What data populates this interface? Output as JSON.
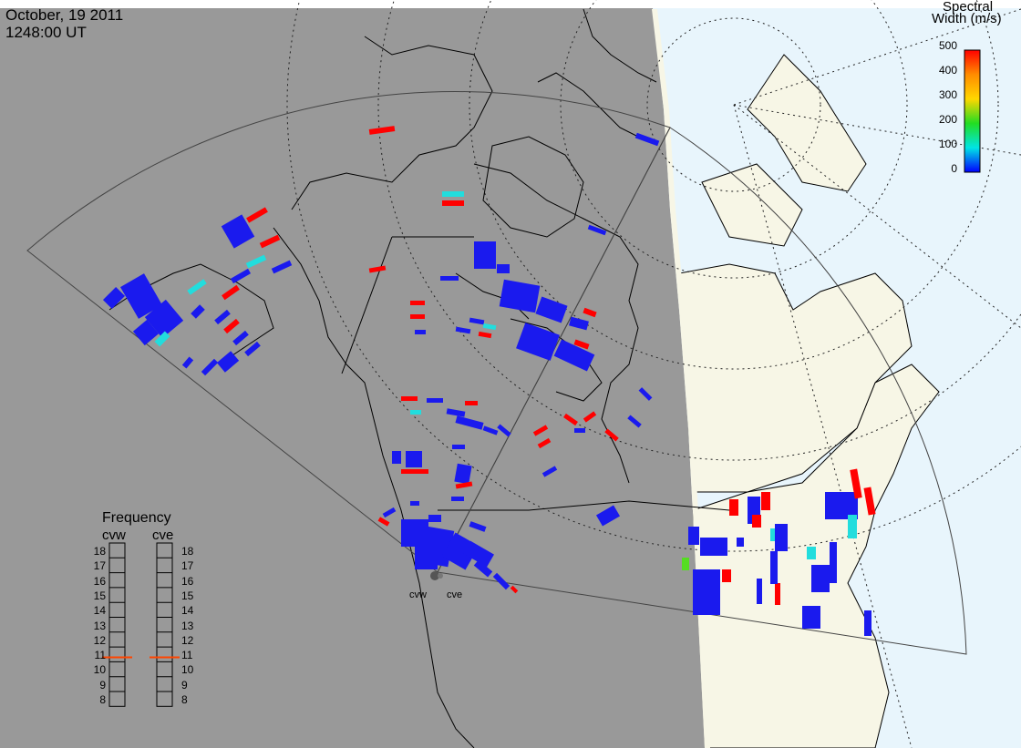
{
  "header": {
    "date": "October, 19 2011",
    "time": "1248:00 UT"
  },
  "colorbar": {
    "title_line1": "Spectral",
    "title_line2": "Width (m/s)",
    "ticks": [
      "500",
      "400",
      "300",
      "200",
      "100",
      "0"
    ],
    "colors": [
      "#ff0000",
      "#ff8c00",
      "#ffd700",
      "#22dd22",
      "#00e5e5",
      "#0000ff"
    ]
  },
  "frequency_panel": {
    "title": "Frequency",
    "radars": [
      {
        "name": "cvw",
        "value": 10.8
      },
      {
        "name": "cve",
        "value": 10.8
      }
    ],
    "ticks": [
      "18",
      "17",
      "16",
      "15",
      "14",
      "13",
      "12",
      "11",
      "10",
      "9",
      "8"
    ],
    "marker_color": "#ff4500"
  },
  "sites": [
    {
      "name": "cvw"
    },
    {
      "name": "cve"
    }
  ],
  "map_colors": {
    "night": "#999999",
    "day_land": "#f7f6e6",
    "day_ocean": "#e8f5fc",
    "echo_low": "#1a1aee",
    "echo_high": "#ff0000"
  }
}
